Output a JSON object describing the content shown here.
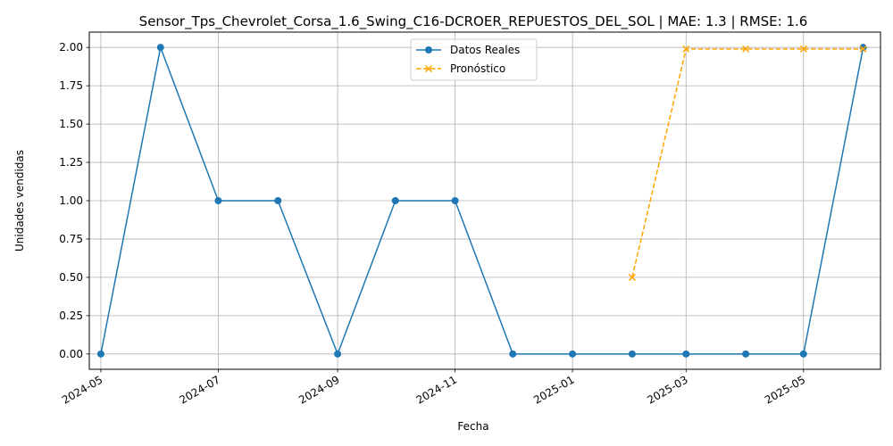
{
  "chart_data": {
    "type": "line",
    "title": "Sensor_Tps_Chevrolet_Corsa_1.6_Swing_C16-DCROER_REPUESTOS_DEL_SOL | MAE: 1.3 | RMSE: 1.6",
    "xlabel": "Fecha",
    "ylabel": "Unidades vendidas",
    "x_range": [
      "2024-04-25",
      "2025-06-10"
    ],
    "ylim": [
      -0.1,
      2.1
    ],
    "x_ticks": [
      "2024-05",
      "2024-07",
      "2024-09",
      "2024-11",
      "2025-01",
      "2025-03",
      "2025-05"
    ],
    "y_ticks": [
      "0.00",
      "0.25",
      "0.50",
      "0.75",
      "1.00",
      "1.25",
      "1.50",
      "1.75",
      "2.00"
    ],
    "grid": true,
    "legend_position": "top-center",
    "series": [
      {
        "name": "Datos Reales",
        "color": "#1f77b4",
        "style": "solid",
        "marker": "circle",
        "x": [
          "2024-05-01",
          "2024-06-01",
          "2024-07-01",
          "2024-08-01",
          "2024-09-01",
          "2024-10-01",
          "2024-11-01",
          "2024-12-01",
          "2025-01-01",
          "2025-02-01",
          "2025-03-01",
          "2025-04-01",
          "2025-05-01",
          "2025-06-01"
        ],
        "values": [
          0,
          2,
          1,
          1,
          0,
          1,
          1,
          0,
          0,
          0,
          0,
          0,
          0,
          2
        ]
      },
      {
        "name": "Pronóstico",
        "color": "#ffa500",
        "style": "dashed",
        "marker": "x",
        "x": [
          "2025-02-01",
          "2025-03-01",
          "2025-04-01",
          "2025-05-01",
          "2025-06-01"
        ],
        "values": [
          0.5,
          1.99,
          1.99,
          1.99,
          1.99
        ]
      }
    ]
  }
}
